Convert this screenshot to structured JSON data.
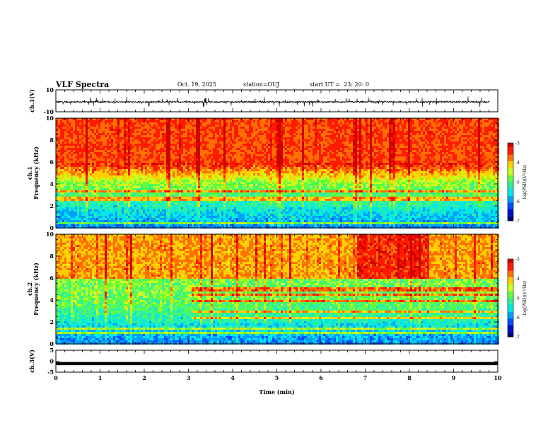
{
  "header": {
    "title": "VLF Spectra",
    "date": "Oct. 19, 2025",
    "station": "station=OUJ",
    "start_ut": "start UT =  23: 20: 0"
  },
  "colors": {
    "waveform": "#000000",
    "colormap": [
      "#000070",
      "#0010c8",
      "#0050ff",
      "#00a0ff",
      "#00e8e8",
      "#30f0a0",
      "#60ff40",
      "#c8ff20",
      "#ffd000",
      "#ff7000",
      "#ff1a00",
      "#d00000"
    ]
  },
  "chart_data": [
    {
      "type": "line",
      "panel": "ch1-waveform",
      "ylabel": "ch.1(V)",
      "ylim": [
        -10,
        10
      ],
      "yticks": [
        "10",
        "-10"
      ],
      "xlim": [
        0,
        10
      ],
      "baseline": -1,
      "amplitude": 4
    },
    {
      "type": "heatmap",
      "panel": "ch1-spectrogram",
      "ylabel": "ch.1\nFrequency (kHz)",
      "ylim": [
        0,
        10
      ],
      "yticks": [
        "0",
        "2",
        "4",
        "6",
        "8",
        "10"
      ],
      "xlim": [
        0,
        10
      ],
      "colorbar": {
        "label": "log(PSD)(V²/Hz)",
        "range": [
          -7,
          -3
        ],
        "ticks": [
          "-3",
          "-4",
          "-5",
          "-6",
          "-7"
        ]
      },
      "bands_khz": [
        0.5,
        2.7,
        3.4
      ]
    },
    {
      "type": "heatmap",
      "panel": "ch2-spectrogram",
      "ylabel": "ch.2\nFrequency (kHz)",
      "ylim": [
        0,
        10
      ],
      "yticks": [
        "0",
        "2",
        "4",
        "6",
        "8",
        "10"
      ],
      "xlim": [
        0,
        10
      ],
      "colorbar": {
        "label": "log(PSD)(V²/Hz)",
        "range": [
          -7,
          -3
        ],
        "ticks": [
          "-3",
          "-4",
          "-5",
          "-6",
          "-7"
        ]
      },
      "bands_khz": [
        1.0,
        1.4,
        2.4,
        3.0,
        3.9,
        4.5,
        5.0
      ],
      "band_start_min": 3.05
    },
    {
      "type": "line",
      "panel": "ch3-waveform",
      "ylabel": "ch.3(V)",
      "ylim": [
        -5,
        5
      ],
      "yticks": [
        "5",
        "0",
        "-5"
      ],
      "xlim": [
        0,
        10
      ],
      "baseline": -1.1,
      "amplitude": 0.1
    }
  ],
  "xaxis": {
    "label": "Time (min)",
    "ticks": [
      "0",
      "1",
      "2",
      "3",
      "4",
      "5",
      "6",
      "7",
      "8",
      "9",
      "10"
    ]
  }
}
